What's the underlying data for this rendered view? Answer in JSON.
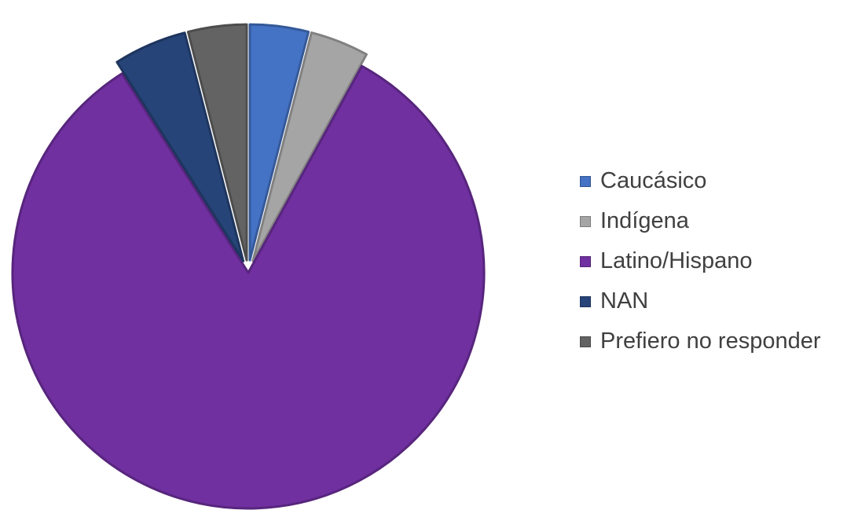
{
  "chart_data": {
    "type": "pie",
    "title": "",
    "slices": [
      {
        "label": "Caucásico",
        "value": 4,
        "color": "#4472C4"
      },
      {
        "label": "Indígena",
        "value": 4,
        "color": "#A5A5A5"
      },
      {
        "label": "Latino/Hispano",
        "value": 83,
        "color": "#7030A0"
      },
      {
        "label": "NAN",
        "value": 5,
        "color": "#264478"
      },
      {
        "label": "Prefiero no responder",
        "value": 4,
        "color": "#636363"
      }
    ],
    "legend_position": "right"
  }
}
